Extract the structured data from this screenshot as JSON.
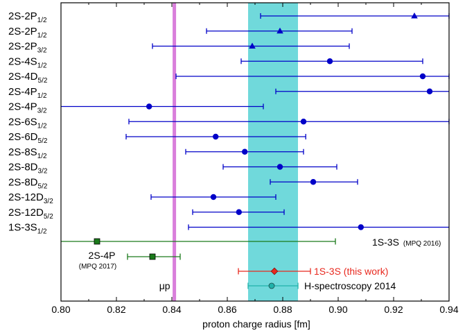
{
  "chart_data": {
    "type": "scatter",
    "xlabel": "proton charge radius [fm]",
    "xlim": [
      0.8,
      0.94
    ],
    "xticks": [
      "0.80",
      "0.82",
      "0.84",
      "0.86",
      "0.88",
      "0.90",
      "0.92",
      "0.94"
    ],
    "grid": false,
    "colors": {
      "muonic_line": "#d97fdb",
      "hspec_band": "#70d9db",
      "h_points": "#0000c8",
      "mpq_points": "#1a7a1a",
      "this_work": "#e8281e",
      "hspec_point": "#20b2aa"
    },
    "muonic_hydrogen": {
      "label": "μp",
      "x": 0.8409
    },
    "h_spectroscopy_band": {
      "x_min": 0.8675,
      "x_max": 0.8855
    },
    "rows": [
      {
        "level": "2S-2P",
        "sub": "1/2",
        "x": 0.9275,
        "err_low": 0.0555,
        "err_high": 0.0125,
        "marker": "triangle"
      },
      {
        "level": "2S-2P",
        "sub": "1/2",
        "x": 0.879,
        "err_low": 0.0265,
        "err_high": 0.026,
        "marker": "triangle"
      },
      {
        "level": "2S-2P",
        "sub": "3/2",
        "x": 0.869,
        "err_low": 0.036,
        "err_high": 0.035,
        "marker": "triangle"
      },
      {
        "level": "2S-4S",
        "sub": "1/2",
        "x": 0.897,
        "err_low": 0.032,
        "err_high": 0.0335,
        "marker": "circle"
      },
      {
        "level": "2S-4D",
        "sub": "5/2",
        "x": 0.9305,
        "err_low": 0.089,
        "err_high": 0.0095,
        "marker": "circle"
      },
      {
        "level": "2S-4P",
        "sub": "1/2",
        "x": 0.933,
        "err_low": 0.0555,
        "err_high": 0.007,
        "marker": "circle"
      },
      {
        "level": "2S-4P",
        "sub": "3/2",
        "x": 0.8318,
        "err_low": 0.0318,
        "err_high": 0.0412,
        "marker": "circle"
      },
      {
        "level": "2S-6S",
        "sub": "1/2",
        "x": 0.8875,
        "err_low": 0.063,
        "err_high": 0.0525,
        "marker": "circle"
      },
      {
        "level": "2S-6D",
        "sub": "5/2",
        "x": 0.8558,
        "err_low": 0.0323,
        "err_high": 0.0325,
        "marker": "circle"
      },
      {
        "level": "2S-8S",
        "sub": "1/2",
        "x": 0.8663,
        "err_low": 0.0213,
        "err_high": 0.0212,
        "marker": "circle"
      },
      {
        "level": "2S-8D",
        "sub": "3/2",
        "x": 0.879,
        "err_low": 0.0205,
        "err_high": 0.0205,
        "marker": "circle"
      },
      {
        "level": "2S-8D",
        "sub": "5/2",
        "x": 0.891,
        "err_low": 0.0155,
        "err_high": 0.016,
        "marker": "circle"
      },
      {
        "level": "2S-12D",
        "sub": "3/2",
        "x": 0.855,
        "err_low": 0.0225,
        "err_high": 0.0225,
        "marker": "circle"
      },
      {
        "level": "2S-12D",
        "sub": "5/2",
        "x": 0.8642,
        "err_low": 0.0167,
        "err_high": 0.0163,
        "marker": "circle"
      },
      {
        "level": "1S-3S",
        "sub": "1/2",
        "x": 0.9082,
        "err_low": 0.0622,
        "err_high": 0.0318,
        "marker": "circle"
      }
    ],
    "comparisons": [
      {
        "name": "1S-3S",
        "note": "(MPQ 2016)",
        "x": 0.813,
        "err_low": 0.013,
        "err_high": 0.086,
        "marker": "square",
        "color_key": "mpq_points"
      },
      {
        "name": "2S-4P",
        "note": "(MPQ 2017)",
        "x": 0.833,
        "err_low": 0.009,
        "err_high": 0.01,
        "marker": "square",
        "color_key": "mpq_points"
      },
      {
        "name": "1S-3S (this work)",
        "note": "",
        "x": 0.877,
        "err_low": 0.013,
        "err_high": 0.013,
        "marker": "diamond",
        "color_key": "this_work"
      },
      {
        "name": "H-spectroscopy 2014",
        "note": "",
        "x": 0.876,
        "err_low": 0.0085,
        "err_high": 0.0095,
        "marker": "circle",
        "color_key": "hspec_point"
      }
    ]
  }
}
